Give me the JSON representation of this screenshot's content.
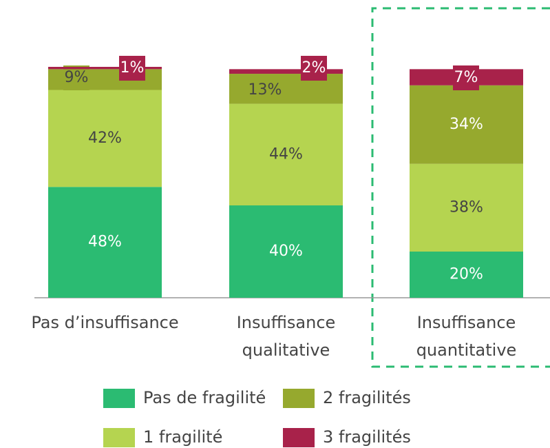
{
  "chart_data": {
    "type": "stacked_bar",
    "categories": [
      [
        "Pas d’insuffisance"
      ],
      [
        "Insuffisance",
        "qualitative"
      ],
      [
        "Insuffisance",
        "quantitative"
      ]
    ],
    "series": [
      {
        "name": "Pas de fragilité",
        "color": "#2bbb72",
        "values": [
          48,
          40,
          20
        ],
        "value_labels": [
          "48%",
          "40%",
          "20%"
        ]
      },
      {
        "name": "1 fragilité",
        "color": "#b5d450",
        "values": [
          42,
          44,
          38
        ],
        "value_labels": [
          "42%",
          "44%",
          "38%"
        ]
      },
      {
        "name": "2 fragilités",
        "color": "#96a92e",
        "values": [
          9,
          13,
          34
        ],
        "value_labels": [
          "9%",
          "13%",
          "34%"
        ]
      },
      {
        "name": "3 fragilités",
        "color": "#a8224a",
        "values": [
          1,
          2,
          7
        ],
        "value_labels": [
          "1%",
          "2%",
          "7%"
        ]
      }
    ]
  }
}
